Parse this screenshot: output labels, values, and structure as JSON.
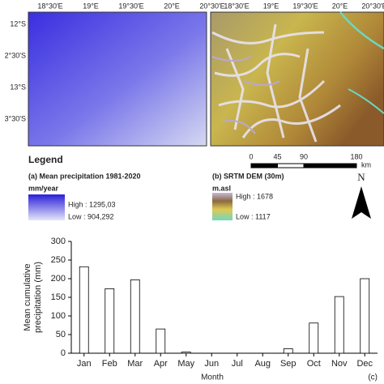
{
  "maps": {
    "lon_ticks": [
      "18°30'E",
      "19°E",
      "19°30'E",
      "20°E",
      "20°30'E"
    ],
    "lat_ticks": [
      "12°S",
      "2°30'S",
      "13°S",
      "3°30'S"
    ],
    "legend_title": "Legend",
    "precip": {
      "title": "(a) Mean precipitation 1981-2020",
      "unit": "mm/year",
      "high": "High : 1295,03",
      "low": "Low : 904,292"
    },
    "dem": {
      "title": "(b) SRTM DEM (30m)",
      "unit": "m.asl",
      "high": "High : 1678",
      "low": "Low : 1117"
    },
    "scale": {
      "ticks": [
        0,
        45,
        90,
        180
      ],
      "unit": "km"
    },
    "north": "N"
  },
  "chart_data": {
    "type": "bar",
    "categories": [
      "Jan",
      "Feb",
      "Mar",
      "Apr",
      "May",
      "Jun",
      "Jul",
      "Aug",
      "Sep",
      "Oct",
      "Nov",
      "Dec"
    ],
    "values": [
      232,
      173,
      197,
      65,
      3,
      0,
      0,
      0,
      12,
      81,
      152,
      200
    ],
    "color": "#ffffff",
    "ylim": [
      0,
      300
    ],
    "yticks": [
      0,
      50,
      100,
      150,
      200,
      250,
      300
    ],
    "ylabel": [
      "Mean cumulative",
      "precipitation (mm)"
    ],
    "xlabel": "Month",
    "panel_label": "(c)"
  }
}
